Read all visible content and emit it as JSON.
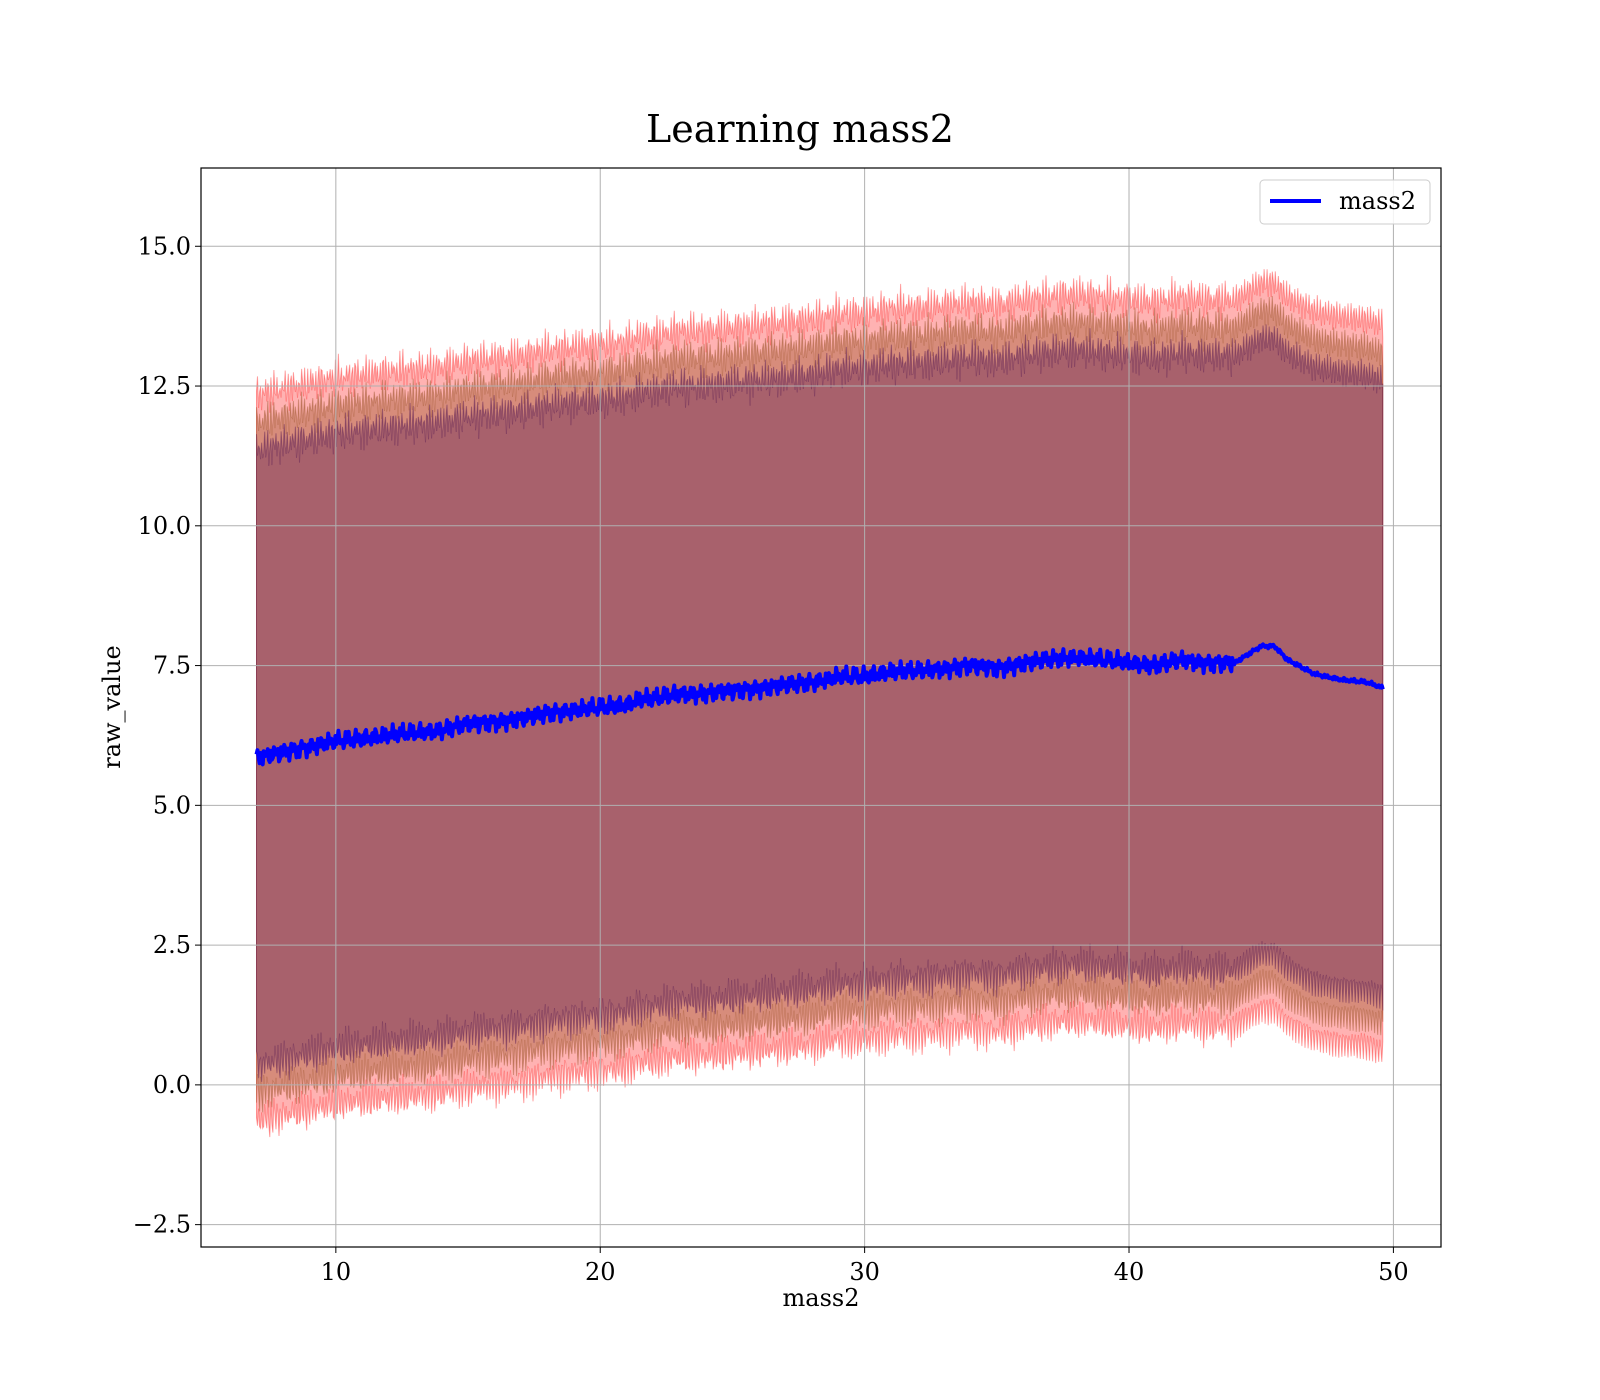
{
  "chart_data": {
    "type": "line",
    "title": "Learning mass2",
    "xlabel": "mass2",
    "ylabel": "raw_value",
    "xlim": [
      4.9,
      51.8
    ],
    "ylim": [
      -2.9,
      16.4
    ],
    "xticks": [
      10,
      20,
      30,
      40,
      50
    ],
    "xtick_labels": [
      "10",
      "20",
      "30",
      "40",
      "50"
    ],
    "yticks": [
      -2.5,
      0.0,
      2.5,
      5.0,
      7.5,
      10.0,
      12.5,
      15.0
    ],
    "ytick_labels": [
      "−2.5",
      "0.0",
      "2.5",
      "5.0",
      "7.5",
      "10.0",
      "12.5",
      "15.0"
    ],
    "grid": true,
    "legend": {
      "position": "upper right",
      "entries": [
        "mass2"
      ]
    },
    "x": [
      7.0,
      8.0,
      9.0,
      10.0,
      11.0,
      12.0,
      13.0,
      14.0,
      15.0,
      16.0,
      17.0,
      18.0,
      19.0,
      20.0,
      21.0,
      21.5,
      22.0,
      23.0,
      24.0,
      25.0,
      26.0,
      27.0,
      28.0,
      29.0,
      30.0,
      31.0,
      32.0,
      33.0,
      34.0,
      35.0,
      36.0,
      37.0,
      38.0,
      39.0,
      40.0,
      41.0,
      42.0,
      43.0,
      44.0,
      44.5,
      45.0,
      45.5,
      46.0,
      47.0,
      48.0,
      49.0,
      49.6
    ],
    "series": [
      {
        "name": "mass2",
        "color": "#0000ff",
        "values": [
          5.85,
          5.95,
          6.05,
          6.15,
          6.2,
          6.25,
          6.3,
          6.35,
          6.45,
          6.5,
          6.55,
          6.65,
          6.7,
          6.75,
          6.8,
          6.9,
          6.9,
          7.0,
          7.0,
          7.05,
          7.1,
          7.15,
          7.2,
          7.3,
          7.3,
          7.4,
          7.4,
          7.45,
          7.5,
          7.45,
          7.55,
          7.6,
          7.65,
          7.6,
          7.55,
          7.5,
          7.6,
          7.55,
          7.55,
          7.7,
          7.85,
          7.85,
          7.6,
          7.35,
          7.25,
          7.2,
          7.1
        ]
      }
    ],
    "bands": [
      {
        "color": "#ff0000",
        "offset": 6.5,
        "opacity": 0.3
      },
      {
        "color": "#8b4513",
        "offset": 6.0,
        "opacity": 0.35
      },
      {
        "color": "#3b004a",
        "offset": 5.5,
        "opacity": 0.3
      }
    ]
  }
}
